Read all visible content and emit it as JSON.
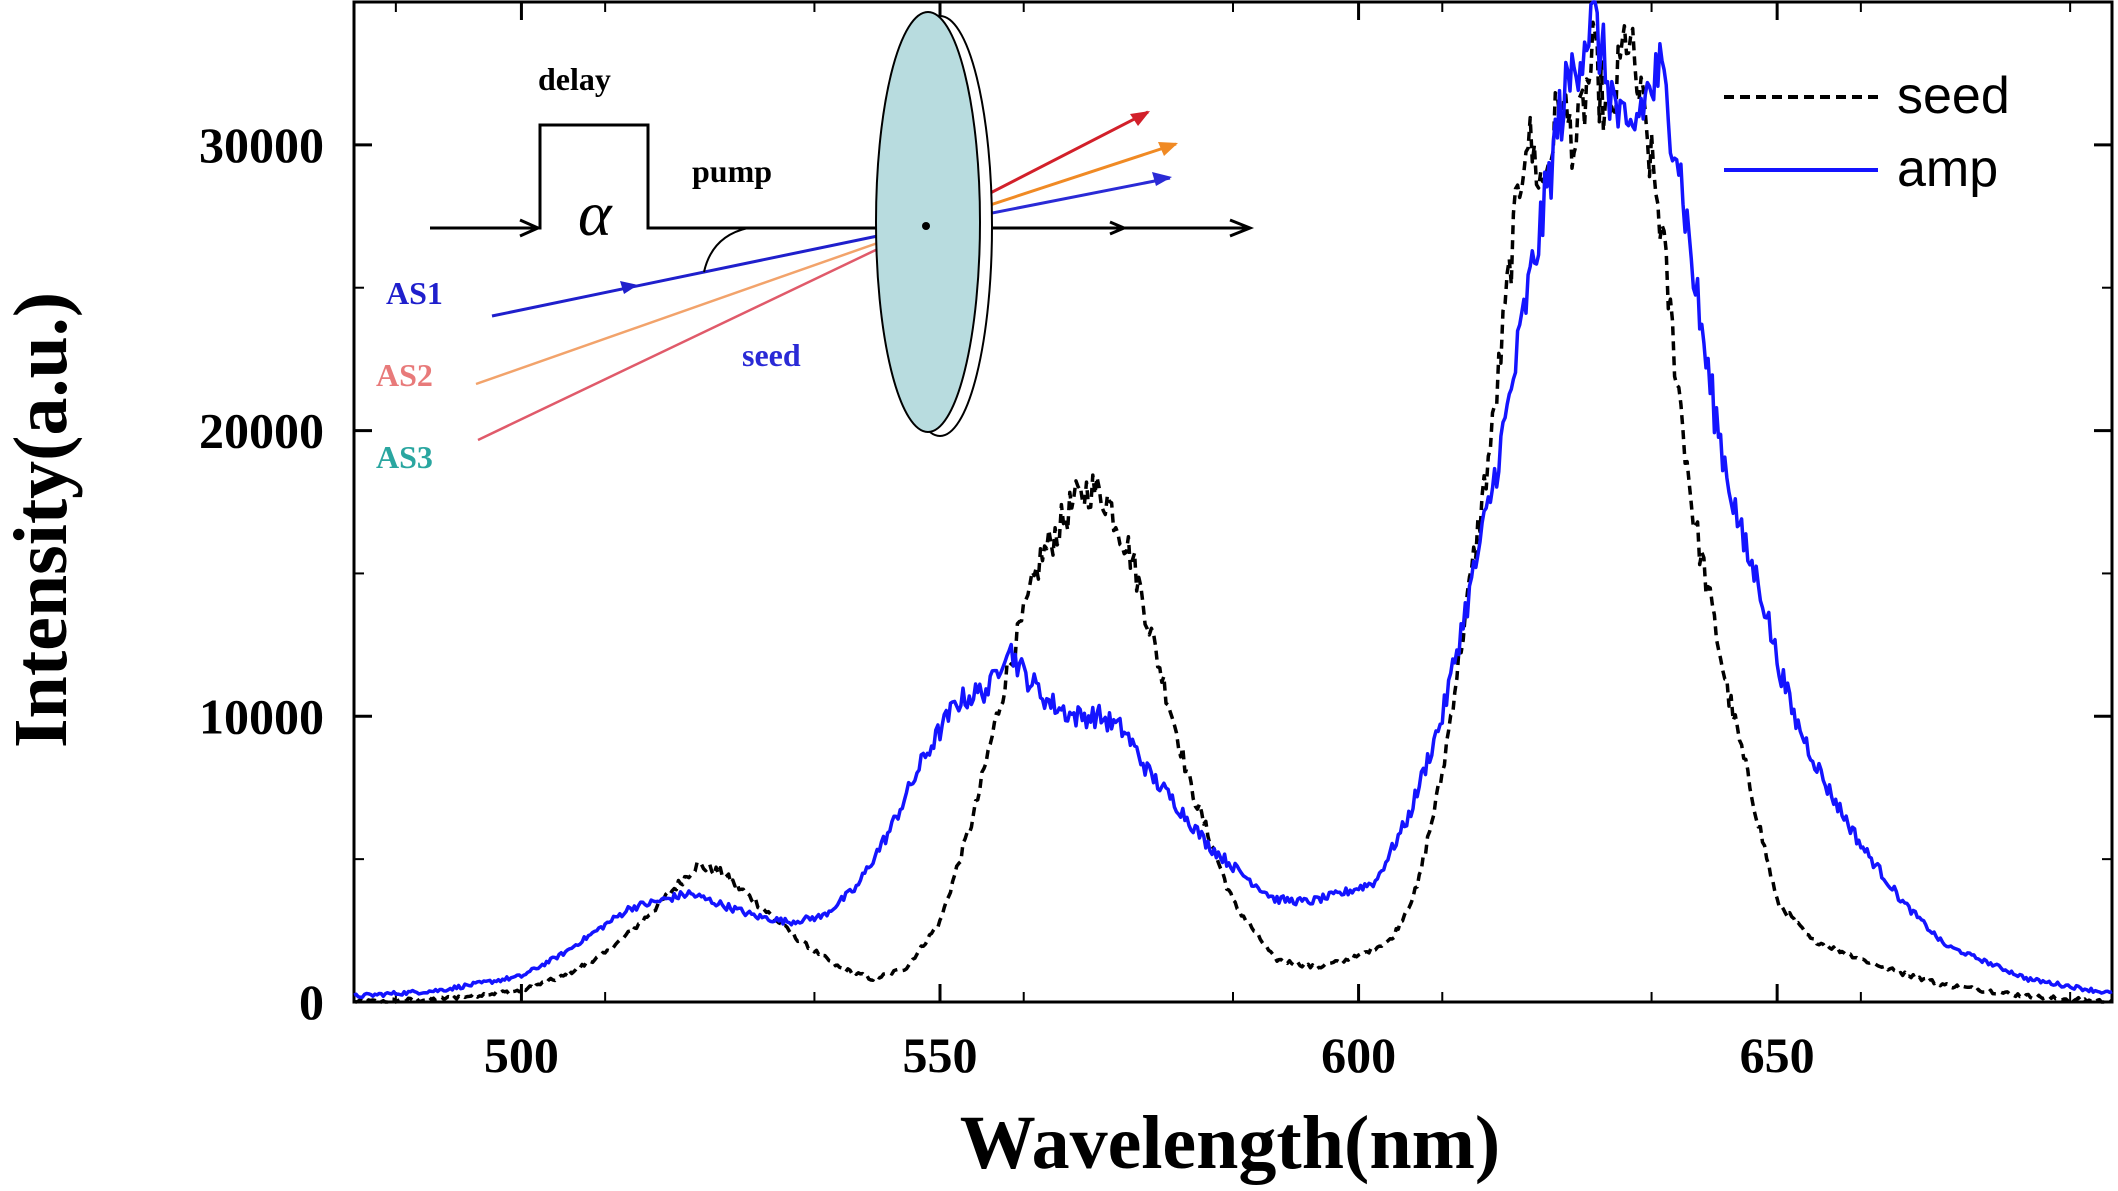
{
  "chart_data": {
    "type": "line",
    "xlabel": "Wavelength(nm)",
    "ylabel": "Intensity(a.u.)",
    "xlim": [
      480,
      690
    ],
    "ylim": [
      0,
      35000
    ],
    "x_ticks": [
      500,
      550,
      600,
      650
    ],
    "y_ticks": [
      0,
      10000,
      20000,
      30000
    ],
    "x_tick_labels": [
      "500",
      "550",
      "600",
      "650"
    ],
    "y_tick_labels": [
      "0",
      "10000",
      "20000",
      "30000"
    ],
    "legend": {
      "placement": "top-right"
    },
    "series": [
      {
        "name": "seed",
        "style": "dashed",
        "color": "#000000",
        "x": [
          480,
          490,
          500,
          505,
          510,
          514,
          518,
          521,
          524,
          528,
          533,
          538,
          542,
          546,
          550,
          554,
          558,
          562,
          566,
          568,
          570,
          573,
          576,
          580,
          585,
          590,
          595,
          600,
          604,
          607,
          610,
          613,
          616,
          618,
          620,
          622,
          624,
          626,
          628,
          630,
          632,
          634,
          636,
          638,
          640,
          642,
          644,
          646,
          648,
          650,
          654,
          660,
          665,
          670,
          680,
          690
        ],
        "values": [
          0,
          100,
          400,
          900,
          1700,
          2700,
          3900,
          4800,
          4500,
          3500,
          2200,
          1200,
          800,
          1200,
          2800,
          6500,
          11500,
          15500,
          17500,
          18000,
          17600,
          15500,
          12000,
          7500,
          3500,
          1500,
          1200,
          1600,
          2200,
          4000,
          8000,
          14000,
          20000,
          25500,
          30500,
          28500,
          31500,
          30000,
          33000,
          30500,
          34000,
          31000,
          27500,
          22000,
          17000,
          14000,
          11000,
          8500,
          6000,
          3500,
          2200,
          1500,
          1000,
          600,
          200,
          0
        ]
      },
      {
        "name": "amp",
        "style": "solid",
        "color": "#1414ff",
        "x": [
          480,
          490,
          500,
          505,
          510,
          513,
          516,
          520,
          524,
          528,
          532,
          536,
          540,
          544,
          548,
          552,
          556,
          558,
          560,
          563,
          566,
          569,
          572,
          575,
          578,
          582,
          586,
          590,
          594,
          598,
          602,
          606,
          610,
          613,
          616,
          618,
          620,
          622,
          624,
          626,
          628,
          630,
          632,
          634,
          636,
          638,
          640,
          642,
          644,
          646,
          648,
          650,
          652,
          656,
          660,
          665,
          670,
          680,
          690
        ],
        "values": [
          200,
          400,
          900,
          1700,
          2700,
          3300,
          3500,
          3800,
          3400,
          3000,
          2800,
          3000,
          4000,
          6000,
          8500,
          10500,
          11000,
          12500,
          11500,
          10500,
          10000,
          10000,
          9500,
          8000,
          7000,
          5500,
          4500,
          3600,
          3500,
          3800,
          4200,
          6500,
          10000,
          14000,
          18000,
          21000,
          24500,
          27500,
          31000,
          33000,
          34500,
          32000,
          30000,
          31500,
          32500,
          30000,
          25500,
          21500,
          18500,
          16000,
          14500,
          12000,
          10000,
          7500,
          5500,
          3500,
          2000,
          800,
          300
        ]
      }
    ],
    "inset": {
      "labels": {
        "delay": "delay",
        "pump": "pump",
        "alpha": "α",
        "as1": "AS1",
        "as2": "AS2",
        "as3": "AS3",
        "seed": "seed"
      },
      "colors": {
        "as1": "#1f1fcc",
        "as2": "#e87a7a",
        "as3": "#2aa6a0",
        "seed_text": "#2a2ad6",
        "crystal": "#b8dcdf",
        "out_red": "#d2202a",
        "out_orange": "#f08a24",
        "out_blue": "#2a2ad6"
      }
    }
  }
}
